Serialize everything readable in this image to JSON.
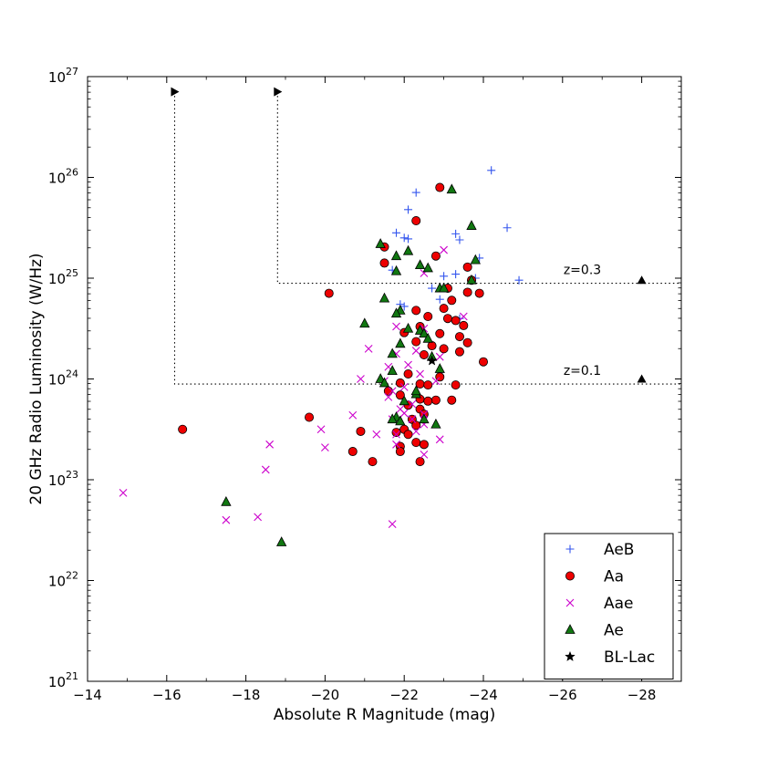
{
  "chart_data": {
    "type": "scatter",
    "xlabel": "Absolute R Magnitude (mag)",
    "ylabel": "20 GHz Radio Luminosity (W/Hz)",
    "xlim": [
      -14,
      -29
    ],
    "ylim_log10": [
      21,
      27
    ],
    "y_scale": "log",
    "x_ticks": [
      -14,
      -16,
      -18,
      -20,
      -22,
      -24,
      -26,
      -28
    ],
    "x_tick_labels": [
      "−14",
      "−16",
      "−18",
      "−20",
      "−22",
      "−24",
      "−26",
      "−28"
    ],
    "y_ticks_log10": [
      21,
      22,
      23,
      24,
      25,
      26,
      27
    ],
    "y_tick_labels": [
      {
        "base": "10",
        "exp": "21"
      },
      {
        "base": "10",
        "exp": "22"
      },
      {
        "base": "10",
        "exp": "23"
      },
      {
        "base": "10",
        "exp": "24"
      },
      {
        "base": "10",
        "exp": "25"
      },
      {
        "base": "10",
        "exp": "26"
      },
      {
        "base": "10",
        "exp": "27"
      }
    ],
    "legend_position": "lower-right",
    "annotations": [
      {
        "text": "z=0.3",
        "x": -26.5,
        "y_log10": 25.04
      },
      {
        "text": "z=0.1",
        "x": -26.5,
        "y_log10": 24.04
      }
    ],
    "limit_lines": [
      {
        "points": [
          [
            -16.2,
            26.85
          ],
          [
            -16.2,
            23.95
          ],
          [
            -29,
            23.95
          ]
        ]
      },
      {
        "points": [
          [
            -18.8,
            26.85
          ],
          [
            -18.8,
            24.95
          ],
          [
            -29,
            24.95
          ]
        ]
      }
    ],
    "limit_markers": [
      {
        "x": -16.2,
        "y_log10": 26.85,
        "marker": "triangle-right"
      },
      {
        "x": -18.8,
        "y_log10": 26.85,
        "marker": "triangle-right"
      },
      {
        "x": -28,
        "y_log10": 24.98,
        "marker": "triangle-up"
      },
      {
        "x": -28,
        "y_log10": 24.0,
        "marker": "triangle-up"
      }
    ],
    "series": [
      {
        "name": "AeB",
        "marker": "plus",
        "color": "#3355ee",
        "points": [
          [
            -24.2,
            26.07
          ],
          [
            -22.3,
            25.85
          ],
          [
            -22.1,
            25.68
          ],
          [
            -24.6,
            25.5
          ],
          [
            -21.8,
            25.45
          ],
          [
            -22.0,
            25.4
          ],
          [
            -22.1,
            25.39
          ],
          [
            -23.3,
            25.44
          ],
          [
            -23.4,
            25.38
          ],
          [
            -23.9,
            25.2
          ],
          [
            -21.7,
            25.08
          ],
          [
            -23.3,
            25.04
          ],
          [
            -23.0,
            25.02
          ],
          [
            -23.8,
            25.0
          ],
          [
            -24.9,
            24.98
          ],
          [
            -22.7,
            24.9
          ],
          [
            -22.9,
            24.79
          ],
          [
            -21.9,
            24.74
          ],
          [
            -22.0,
            24.72
          ],
          [
            -22.6,
            24.62
          ],
          [
            -23.4,
            24.6
          ]
        ]
      },
      {
        "name": "Aa",
        "marker": "circle",
        "color": "#ee0000",
        "points": [
          [
            -22.9,
            25.9
          ],
          [
            -22.3,
            25.57
          ],
          [
            -21.5,
            25.31
          ],
          [
            -22.8,
            25.22
          ],
          [
            -21.5,
            25.15
          ],
          [
            -23.6,
            25.11
          ],
          [
            -23.7,
            24.98
          ],
          [
            -23.1,
            24.9
          ],
          [
            -20.1,
            24.85
          ],
          [
            -23.6,
            24.86
          ],
          [
            -23.9,
            24.85
          ],
          [
            -23.2,
            24.78
          ],
          [
            -22.3,
            24.68
          ],
          [
            -23.0,
            24.7
          ],
          [
            -22.6,
            24.62
          ],
          [
            -23.1,
            24.6
          ],
          [
            -23.3,
            24.58
          ],
          [
            -23.5,
            24.53
          ],
          [
            -22.4,
            24.52
          ],
          [
            -22.0,
            24.46
          ],
          [
            -22.9,
            24.45
          ],
          [
            -23.4,
            24.42
          ],
          [
            -23.6,
            24.36
          ],
          [
            -22.3,
            24.37
          ],
          [
            -22.7,
            24.33
          ],
          [
            -23.0,
            24.3
          ],
          [
            -23.4,
            24.27
          ],
          [
            -22.5,
            24.24
          ],
          [
            -24.0,
            24.17
          ],
          [
            -22.1,
            24.05
          ],
          [
            -22.9,
            24.02
          ],
          [
            -21.9,
            23.96
          ],
          [
            -22.4,
            23.95
          ],
          [
            -22.6,
            23.94
          ],
          [
            -23.3,
            23.94
          ],
          [
            -21.6,
            23.88
          ],
          [
            -21.9,
            23.84
          ],
          [
            -22.4,
            23.8
          ],
          [
            -22.8,
            23.79
          ],
          [
            -23.2,
            23.79
          ],
          [
            -22.6,
            23.78
          ],
          [
            -22.1,
            23.74
          ],
          [
            -22.4,
            23.7
          ],
          [
            -22.5,
            23.65
          ],
          [
            -22.2,
            23.6
          ],
          [
            -22.3,
            23.54
          ],
          [
            -19.6,
            23.62
          ],
          [
            -22.0,
            23.5
          ],
          [
            -20.9,
            23.48
          ],
          [
            -22.1,
            23.45
          ],
          [
            -21.8,
            23.47
          ],
          [
            -22.3,
            23.37
          ],
          [
            -22.5,
            23.35
          ],
          [
            -21.9,
            23.33
          ],
          [
            -21.9,
            23.28
          ],
          [
            -16.4,
            23.5
          ],
          [
            -20.7,
            23.28
          ],
          [
            -21.2,
            23.18
          ],
          [
            -22.4,
            23.18
          ]
        ]
      },
      {
        "name": "Aae",
        "marker": "cross",
        "color": "#cc00cc",
        "points": [
          [
            -23.0,
            25.28
          ],
          [
            -22.5,
            25.05
          ],
          [
            -23.5,
            24.62
          ],
          [
            -21.8,
            24.52
          ],
          [
            -22.5,
            24.5
          ],
          [
            -21.1,
            24.3
          ],
          [
            -22.3,
            24.28
          ],
          [
            -21.8,
            24.25
          ],
          [
            -22.9,
            24.22
          ],
          [
            -21.6,
            24.12
          ],
          [
            -22.1,
            24.14
          ],
          [
            -22.4,
            24.05
          ],
          [
            -20.9,
            24.0
          ],
          [
            -21.5,
            23.98
          ],
          [
            -22.8,
            23.98
          ],
          [
            -22.0,
            23.92
          ],
          [
            -21.7,
            23.88
          ],
          [
            -21.6,
            23.82
          ],
          [
            -22.2,
            23.75
          ],
          [
            -21.9,
            23.7
          ],
          [
            -22.0,
            23.66
          ],
          [
            -22.5,
            23.65
          ],
          [
            -21.7,
            23.6
          ],
          [
            -22.2,
            23.6
          ],
          [
            -20.7,
            23.64
          ],
          [
            -22.5,
            23.55
          ],
          [
            -19.9,
            23.5
          ],
          [
            -22.3,
            23.48
          ],
          [
            -21.8,
            23.45
          ],
          [
            -21.3,
            23.45
          ],
          [
            -22.9,
            23.4
          ],
          [
            -21.8,
            23.35
          ],
          [
            -20.0,
            23.32
          ],
          [
            -18.6,
            23.35
          ],
          [
            -18.5,
            23.1
          ],
          [
            -14.9,
            22.87
          ],
          [
            -17.5,
            22.6
          ],
          [
            -18.3,
            22.63
          ],
          [
            -21.7,
            22.56
          ],
          [
            -22.5,
            23.25
          ]
        ]
      },
      {
        "name": "Ae",
        "marker": "triangle",
        "color": "#117711",
        "points": [
          [
            -23.2,
            25.88
          ],
          [
            -23.7,
            25.52
          ],
          [
            -21.4,
            25.34
          ],
          [
            -22.1,
            25.27
          ],
          [
            -21.8,
            25.22
          ],
          [
            -22.4,
            25.13
          ],
          [
            -23.8,
            25.18
          ],
          [
            -22.6,
            25.1
          ],
          [
            -21.8,
            25.07
          ],
          [
            -23.7,
            24.98
          ],
          [
            -22.9,
            24.9
          ],
          [
            -23.0,
            24.9
          ],
          [
            -21.5,
            24.8
          ],
          [
            -21.9,
            24.68
          ],
          [
            -21.8,
            24.65
          ],
          [
            -21.0,
            24.55
          ],
          [
            -22.1,
            24.5
          ],
          [
            -22.4,
            24.48
          ],
          [
            -22.5,
            24.45
          ],
          [
            -22.6,
            24.4
          ],
          [
            -21.9,
            24.35
          ],
          [
            -21.7,
            24.25
          ],
          [
            -22.7,
            24.22
          ],
          [
            -22.9,
            24.1
          ],
          [
            -21.7,
            24.08
          ],
          [
            -21.4,
            24.0
          ],
          [
            -21.5,
            23.96
          ],
          [
            -22.3,
            23.85
          ],
          [
            -22.0,
            23.78
          ],
          [
            -21.8,
            23.62
          ],
          [
            -22.5,
            23.6
          ],
          [
            -21.7,
            23.6
          ],
          [
            -21.9,
            23.58
          ],
          [
            -22.8,
            23.55
          ],
          [
            -17.5,
            22.78
          ],
          [
            -18.9,
            22.38
          ],
          [
            -22.3,
            23.88
          ]
        ]
      },
      {
        "name": "BL-Lac",
        "marker": "star",
        "color": "#000000",
        "points": [
          [
            -22.7,
            24.18
          ]
        ]
      }
    ]
  }
}
